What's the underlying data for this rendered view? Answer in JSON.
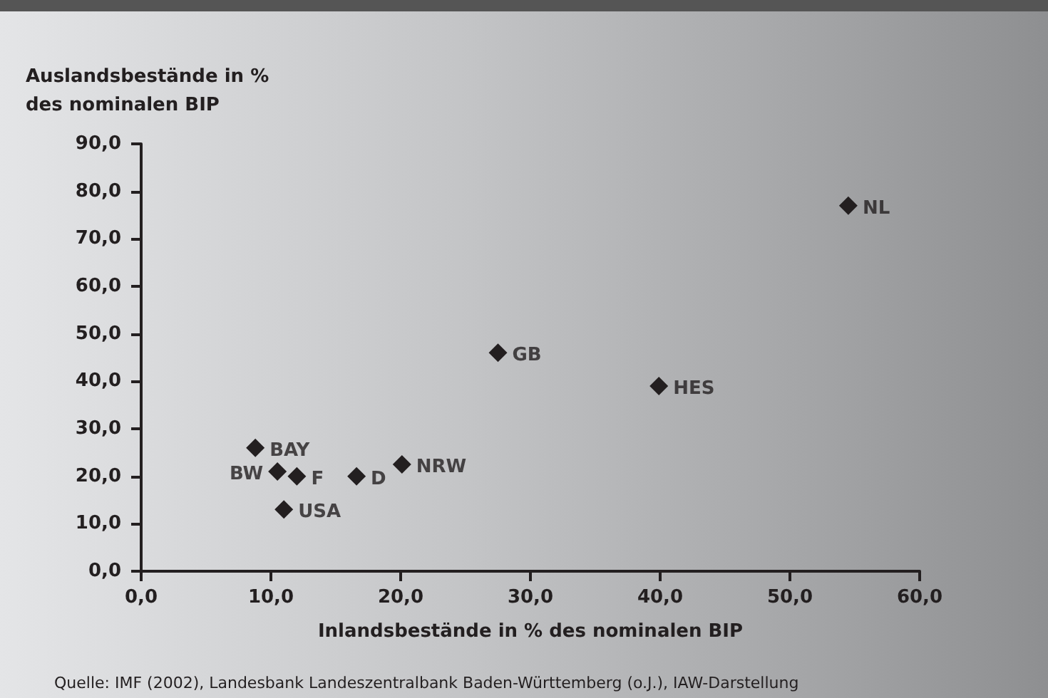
{
  "chart_data": {
    "type": "scatter",
    "xlabel": "Inlandsbestände in % des nominalen BIP",
    "ylabel": "Auslandsbestände in %\ndes nominalen BIP",
    "x": [
      8.8,
      10.5,
      12.0,
      11.0,
      16.6,
      20.1,
      27.5,
      39.9,
      54.5
    ],
    "series": [
      {
        "color": "#231f20",
        "values": [
          26,
          21,
          20,
          13,
          20,
          22.5,
          46,
          39,
          77
        ]
      }
    ],
    "marker": "diamond",
    "grid": false,
    "xlim": [
      0,
      60
    ],
    "ylim": [
      0,
      90
    ],
    "xticks": [
      {
        "value": 0,
        "label": "0,0"
      },
      {
        "value": 10,
        "label": "10,0"
      },
      {
        "value": 20,
        "label": "20,0"
      },
      {
        "value": 30,
        "label": "30,0"
      },
      {
        "value": 40,
        "label": "40,0"
      },
      {
        "value": 50,
        "label": "50,0"
      },
      {
        "value": 60,
        "label": "60,0"
      }
    ],
    "yticks": [
      {
        "value": 0,
        "label": "0,0"
      },
      {
        "value": 10,
        "label": "10,0"
      },
      {
        "value": 20,
        "label": "20,0"
      },
      {
        "value": 30,
        "label": "30,0"
      },
      {
        "value": 40,
        "label": "40,0"
      },
      {
        "value": 50,
        "label": "50,0"
      },
      {
        "value": 60,
        "label": "60,0"
      },
      {
        "value": 70,
        "label": "70,0"
      },
      {
        "value": 80,
        "label": "80,0"
      },
      {
        "value": 90,
        "label": "90,0"
      }
    ],
    "annotations": [
      {
        "text": "BAY",
        "x": 8.8,
        "y": 26
      },
      {
        "text": "BW",
        "x": 10.5,
        "y": 21
      },
      {
        "text": "F",
        "x": 12.0,
        "y": 20
      },
      {
        "text": "USA",
        "x": 11.0,
        "y": 13
      },
      {
        "text": "D",
        "x": 16.6,
        "y": 20
      },
      {
        "text": "NRW",
        "x": 20.1,
        "y": 22.5
      },
      {
        "text": "GB",
        "x": 27.5,
        "y": 46
      },
      {
        "text": "HES",
        "x": 39.9,
        "y": 39
      },
      {
        "text": "NL",
        "x": 54.5,
        "y": 77
      },
      "Quelle: IMF (2002), Landesbank Landeszentralbank Baden-Württemberg (o.J.), IAW-Darstellung"
    ]
  }
}
